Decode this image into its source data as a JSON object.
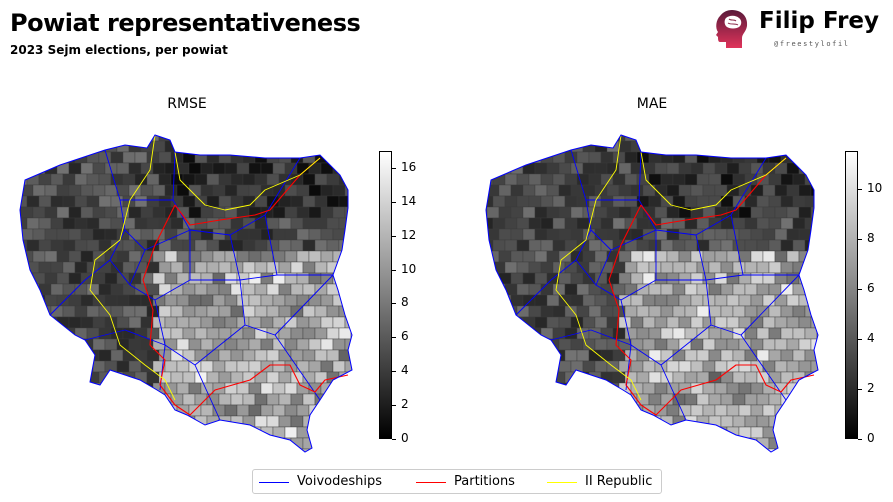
{
  "header": {
    "title": "Powiat representativeness",
    "subtitle": "2023 Sejm elections, per powiat"
  },
  "brand": {
    "name": "Filip Frey",
    "handle": "@freestylofil",
    "logo_icon": "head-brain-icon"
  },
  "panels": [
    {
      "title": "RMSE",
      "colorbar": {
        "min": 0,
        "max": 17,
        "ticks": [
          "0",
          "2",
          "4",
          "6",
          "8",
          "10",
          "12",
          "14",
          "16"
        ]
      }
    },
    {
      "title": "MAE",
      "colorbar": {
        "min": 0,
        "max": 11.5,
        "ticks": [
          "0",
          "2",
          "4",
          "6",
          "8",
          "10"
        ]
      }
    }
  ],
  "legend": {
    "placement": "bottom-center",
    "items": [
      {
        "label": "Voivodeships",
        "color": "#0000ff"
      },
      {
        "label": "Partitions",
        "color": "#ff0000"
      },
      {
        "label": "II Republic",
        "color": "#ffff00"
      }
    ]
  },
  "colormap": "greys (black = 0, white = max)"
}
